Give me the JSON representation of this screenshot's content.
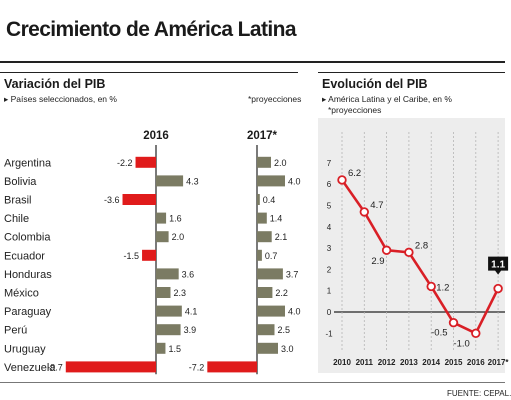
{
  "header": {
    "title": "Crecimiento de América Latina"
  },
  "left_panel": {
    "title": "Variación del PIB",
    "subtitle": "Países seleccionados, en %",
    "note": "*proyecciones"
  },
  "right_panel": {
    "title": "Evolución del PIB",
    "subtitle": "América Latina y el Caribe, en %",
    "note": "*proyecciones"
  },
  "footer": {
    "source": "FUENTE: CEPAL."
  },
  "colors": {
    "positive": "#7b7b63",
    "negative": "#e01b1b",
    "line": "#d91f26"
  },
  "chart_data": [
    {
      "type": "bar",
      "orientation": "horizontal",
      "title": "Variación del PIB",
      "categories": [
        "Argentina",
        "Bolivia",
        "Brasil",
        "Chile",
        "Colombia",
        "Ecuador",
        "Honduras",
        "México",
        "Paraguay",
        "Perú",
        "Uruguay",
        "Venezuela"
      ],
      "series": [
        {
          "name": "2016",
          "values": [
            -2.2,
            4.3,
            -3.6,
            1.6,
            2.0,
            -1.5,
            3.6,
            2.3,
            4.1,
            3.9,
            1.5,
            -9.7
          ]
        },
        {
          "name": "2017*",
          "values": [
            2.0,
            4.0,
            0.4,
            1.4,
            2.1,
            0.7,
            3.7,
            2.2,
            4.0,
            2.5,
            3.0,
            -7.2
          ]
        }
      ]
    },
    {
      "type": "line",
      "title": "Evolución del PIB",
      "x": [
        "2010",
        "2011",
        "2012",
        "2013",
        "2014",
        "2015",
        "2016",
        "2017*"
      ],
      "values": [
        6.2,
        4.7,
        2.9,
        2.8,
        1.2,
        -0.5,
        -1.0,
        1.1
      ],
      "labels": [
        "6.2",
        "4.7",
        "2.9",
        "2.8",
        "1.2",
        "-0.5",
        "-1.0",
        "1.1"
      ],
      "y_ticks": [
        "7",
        "6",
        "5",
        "4",
        "3",
        "2",
        "1",
        "0",
        "-1"
      ],
      "ylim": [
        -1.5,
        7.3
      ],
      "grid": "vertical"
    }
  ]
}
